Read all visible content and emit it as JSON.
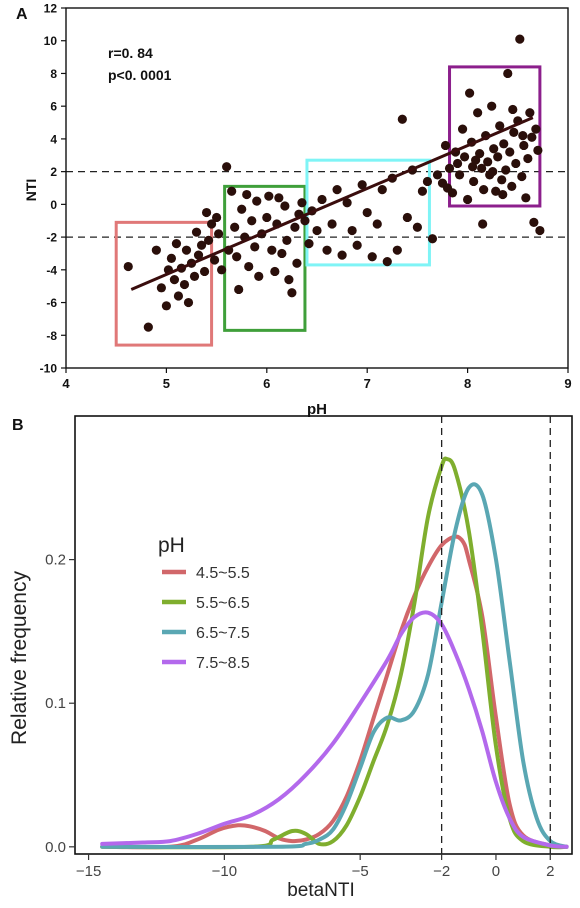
{
  "panels": {
    "a": {
      "label": "A"
    },
    "b": {
      "label": "B"
    }
  },
  "chart_data": [
    {
      "panel": "A",
      "type": "scatter",
      "xlabel": "pH",
      "ylabel": "NTI",
      "xlim": [
        4,
        9
      ],
      "ylim": [
        -10,
        12
      ],
      "xticks": [
        4,
        5,
        6,
        7,
        8,
        9
      ],
      "yticks": [
        -10,
        -8,
        -6,
        -4,
        -2,
        0,
        2,
        4,
        6,
        8,
        10,
        12
      ],
      "annotations": [
        "r=0. 84",
        "p<0. 0001"
      ],
      "reference_lines": [
        2,
        -2
      ],
      "trendline": {
        "x": [
          4.65,
          8.65
        ],
        "y": [
          -5.2,
          5.3
        ],
        "color": "#3a0d0d"
      },
      "marker_color": "#2a0f0a",
      "points": [
        [
          4.62,
          -3.8
        ],
        [
          4.82,
          -7.5
        ],
        [
          4.9,
          -2.8
        ],
        [
          4.95,
          -5.1
        ],
        [
          5.0,
          -6.2
        ],
        [
          5.02,
          -4.0
        ],
        [
          5.05,
          -3.3
        ],
        [
          5.08,
          -4.6
        ],
        [
          5.1,
          -2.4
        ],
        [
          5.12,
          -5.6
        ],
        [
          5.15,
          -3.9
        ],
        [
          5.18,
          -4.9
        ],
        [
          5.2,
          -2.8
        ],
        [
          5.22,
          -6.0
        ],
        [
          5.25,
          -3.6
        ],
        [
          5.28,
          -4.4
        ],
        [
          5.3,
          -1.7
        ],
        [
          5.32,
          -3.1
        ],
        [
          5.35,
          -2.5
        ],
        [
          5.38,
          -4.1
        ],
        [
          5.4,
          -0.5
        ],
        [
          5.42,
          -2.2
        ],
        [
          5.45,
          -1.2
        ],
        [
          5.48,
          -3.4
        ],
        [
          5.5,
          -0.8
        ],
        [
          5.52,
          -1.8
        ],
        [
          5.55,
          -4.0
        ],
        [
          5.6,
          2.3
        ],
        [
          5.62,
          -2.8
        ],
        [
          5.65,
          0.8
        ],
        [
          5.68,
          -1.4
        ],
        [
          5.7,
          -3.2
        ],
        [
          5.72,
          -5.2
        ],
        [
          5.75,
          -0.3
        ],
        [
          5.78,
          -2.0
        ],
        [
          5.8,
          0.6
        ],
        [
          5.82,
          -3.8
        ],
        [
          5.85,
          -1.0
        ],
        [
          5.88,
          -2.6
        ],
        [
          5.9,
          0.2
        ],
        [
          5.92,
          -4.4
        ],
        [
          5.95,
          -1.8
        ],
        [
          6.0,
          -0.8
        ],
        [
          6.02,
          0.5
        ],
        [
          6.05,
          -2.8
        ],
        [
          6.08,
          -4.1
        ],
        [
          6.1,
          -1.2
        ],
        [
          6.12,
          0.4
        ],
        [
          6.15,
          -3.0
        ],
        [
          6.18,
          -0.1
        ],
        [
          6.2,
          -2.2
        ],
        [
          6.22,
          -4.6
        ],
        [
          6.25,
          -5.4
        ],
        [
          6.28,
          -1.4
        ],
        [
          6.3,
          -3.6
        ],
        [
          6.32,
          -0.6
        ],
        [
          6.35,
          0.1
        ],
        [
          6.38,
          -1.0
        ],
        [
          6.42,
          -2.4
        ],
        [
          6.45,
          -0.4
        ],
        [
          6.5,
          -1.6
        ],
        [
          6.55,
          0.3
        ],
        [
          6.6,
          -2.8
        ],
        [
          6.65,
          -1.2
        ],
        [
          6.7,
          0.9
        ],
        [
          6.75,
          -3.1
        ],
        [
          6.8,
          0.1
        ],
        [
          6.85,
          -1.6
        ],
        [
          6.9,
          -2.5
        ],
        [
          6.95,
          1.2
        ],
        [
          7.0,
          -0.5
        ],
        [
          7.05,
          -3.2
        ],
        [
          7.1,
          -1.2
        ],
        [
          7.15,
          0.9
        ],
        [
          7.2,
          -3.5
        ],
        [
          7.25,
          1.6
        ],
        [
          7.3,
          -2.8
        ],
        [
          7.35,
          5.2
        ],
        [
          7.4,
          -0.8
        ],
        [
          7.45,
          2.1
        ],
        [
          7.5,
          -1.4
        ],
        [
          7.55,
          0.8
        ],
        [
          7.6,
          1.4
        ],
        [
          7.65,
          -2.1
        ],
        [
          7.7,
          1.8
        ],
        [
          7.75,
          1.3
        ],
        [
          7.78,
          3.6
        ],
        [
          7.8,
          1.0
        ],
        [
          7.82,
          2.2
        ],
        [
          7.85,
          0.7
        ],
        [
          7.88,
          3.2
        ],
        [
          7.9,
          2.5
        ],
        [
          7.92,
          1.8
        ],
        [
          7.95,
          4.6
        ],
        [
          7.97,
          2.9
        ],
        [
          8.0,
          0.3
        ],
        [
          8.02,
          6.8
        ],
        [
          8.04,
          3.8
        ],
        [
          8.06,
          1.4
        ],
        [
          8.08,
          2.7
        ],
        [
          8.1,
          5.6
        ],
        [
          8.12,
          3.1
        ],
        [
          8.14,
          2.2
        ],
        [
          8.16,
          0.9
        ],
        [
          8.18,
          4.2
        ],
        [
          8.2,
          2.6
        ],
        [
          8.22,
          1.8
        ],
        [
          8.24,
          6.0
        ],
        [
          8.26,
          3.4
        ],
        [
          8.28,
          0.8
        ],
        [
          8.3,
          2.9
        ],
        [
          8.32,
          4.8
        ],
        [
          8.34,
          1.5
        ],
        [
          8.36,
          3.7
        ],
        [
          8.38,
          2.1
        ],
        [
          8.4,
          8.0
        ],
        [
          8.42,
          3.2
        ],
        [
          8.44,
          1.1
        ],
        [
          8.46,
          4.4
        ],
        [
          8.48,
          2.5
        ],
        [
          8.5,
          5.1
        ],
        [
          8.52,
          10.1
        ],
        [
          8.54,
          1.7
        ],
        [
          8.56,
          3.6
        ],
        [
          8.58,
          0.4
        ],
        [
          8.6,
          2.8
        ],
        [
          8.62,
          5.6
        ],
        [
          8.64,
          4.1
        ],
        [
          8.66,
          -1.1
        ],
        [
          8.68,
          4.6
        ],
        [
          8.7,
          3.3
        ],
        [
          8.72,
          -1.6
        ],
        [
          8.15,
          -1.2
        ],
        [
          8.25,
          2.0
        ],
        [
          8.35,
          0.6
        ],
        [
          8.45,
          5.8
        ],
        [
          8.55,
          4.2
        ],
        [
          8.05,
          2.3
        ]
      ],
      "boxes": [
        {
          "x": [
            4.5,
            5.45
          ],
          "y": [
            -8.6,
            -1.1
          ],
          "color": "#e07878"
        },
        {
          "x": [
            5.58,
            6.38
          ],
          "y": [
            -7.7,
            1.1
          ],
          "color": "#3f9f3a"
        },
        {
          "x": [
            6.4,
            7.62
          ],
          "y": [
            -3.7,
            2.7
          ],
          "color": "#7ff4f6"
        },
        {
          "x": [
            7.82,
            8.72
          ],
          "y": [
            -0.1,
            8.4
          ],
          "color": "#8c1f8c"
        }
      ]
    },
    {
      "panel": "B",
      "type": "line",
      "xlabel": "betaNTI",
      "ylabel": "Relative frequency",
      "xlim": [
        -15.5,
        2.8
      ],
      "ylim": [
        -0.005,
        0.3
      ],
      "xticks": [
        -15,
        -10,
        -5,
        -2,
        0,
        2
      ],
      "xtick_labels": [
        "−15",
        "−10",
        "−5",
        "−2",
        "0",
        "2"
      ],
      "yticks": [
        0.0,
        0.1,
        0.2
      ],
      "ytick_labels": [
        "0.0",
        "0.1",
        "0.2"
      ],
      "reference_lines": [
        -2,
        2
      ],
      "legend_title": "pH",
      "legend_position": "left",
      "series": [
        {
          "name": "4.5~5.5",
          "color": "#d1676a",
          "x": [
            -14.5,
            -12,
            -11,
            -10.2,
            -9.5,
            -9,
            -8.5,
            -8,
            -7.5,
            -7,
            -6.5,
            -6,
            -5.5,
            -5,
            -4.5,
            -4,
            -3.5,
            -3,
            -2.5,
            -2,
            -1.5,
            -1.2,
            -1,
            -0.5,
            0,
            0.5,
            1,
            2,
            2.6
          ],
          "y": [
            0.0,
            0.0,
            0.005,
            0.012,
            0.015,
            0.014,
            0.011,
            0.006,
            0.004,
            0.005,
            0.009,
            0.018,
            0.035,
            0.06,
            0.09,
            0.12,
            0.15,
            0.175,
            0.195,
            0.21,
            0.216,
            0.212,
            0.2,
            0.16,
            0.09,
            0.03,
            0.008,
            0.001,
            0.0
          ]
        },
        {
          "name": "5.5~6.5",
          "color": "#7fae2e",
          "x": [
            -14.5,
            -9,
            -8.2,
            -7.5,
            -7,
            -6.5,
            -6,
            -5.5,
            -5,
            -4.5,
            -4,
            -3.5,
            -3,
            -2.5,
            -2,
            -1.8,
            -1.5,
            -1,
            -0.5,
            0,
            0.5,
            1,
            2,
            2.6
          ],
          "y": [
            0.0,
            0.0,
            0.005,
            0.011,
            0.009,
            0.002,
            0.004,
            0.015,
            0.035,
            0.06,
            0.085,
            0.12,
            0.17,
            0.23,
            0.265,
            0.27,
            0.262,
            0.22,
            0.15,
            0.07,
            0.02,
            0.004,
            0.0,
            0.0
          ]
        },
        {
          "name": "6.5~7.5",
          "color": "#5aa7b3",
          "x": [
            -14.5,
            -8,
            -7,
            -6.5,
            -6,
            -5.5,
            -5,
            -4.5,
            -4,
            -3.5,
            -3,
            -2.5,
            -2,
            -1.5,
            -1,
            -0.5,
            0,
            0.5,
            1,
            1.5,
            2,
            2.6
          ],
          "y": [
            0.0,
            0.0,
            0.002,
            0.005,
            0.012,
            0.03,
            0.055,
            0.08,
            0.09,
            0.088,
            0.095,
            0.12,
            0.17,
            0.22,
            0.25,
            0.245,
            0.2,
            0.13,
            0.06,
            0.02,
            0.004,
            0.0
          ]
        },
        {
          "name": "7.5~8.5",
          "color": "#b369ec",
          "x": [
            -14.5,
            -13,
            -12,
            -11,
            -10,
            -9,
            -8,
            -7,
            -6,
            -5,
            -4,
            -3.5,
            -3,
            -2.5,
            -2,
            -1.5,
            -1,
            -0.5,
            0,
            0.5,
            1,
            2,
            2.6
          ],
          "y": [
            0.002,
            0.003,
            0.004,
            0.009,
            0.016,
            0.022,
            0.033,
            0.05,
            0.072,
            0.1,
            0.13,
            0.148,
            0.16,
            0.163,
            0.155,
            0.135,
            0.11,
            0.08,
            0.045,
            0.02,
            0.007,
            0.001,
            0.0
          ]
        }
      ]
    }
  ]
}
